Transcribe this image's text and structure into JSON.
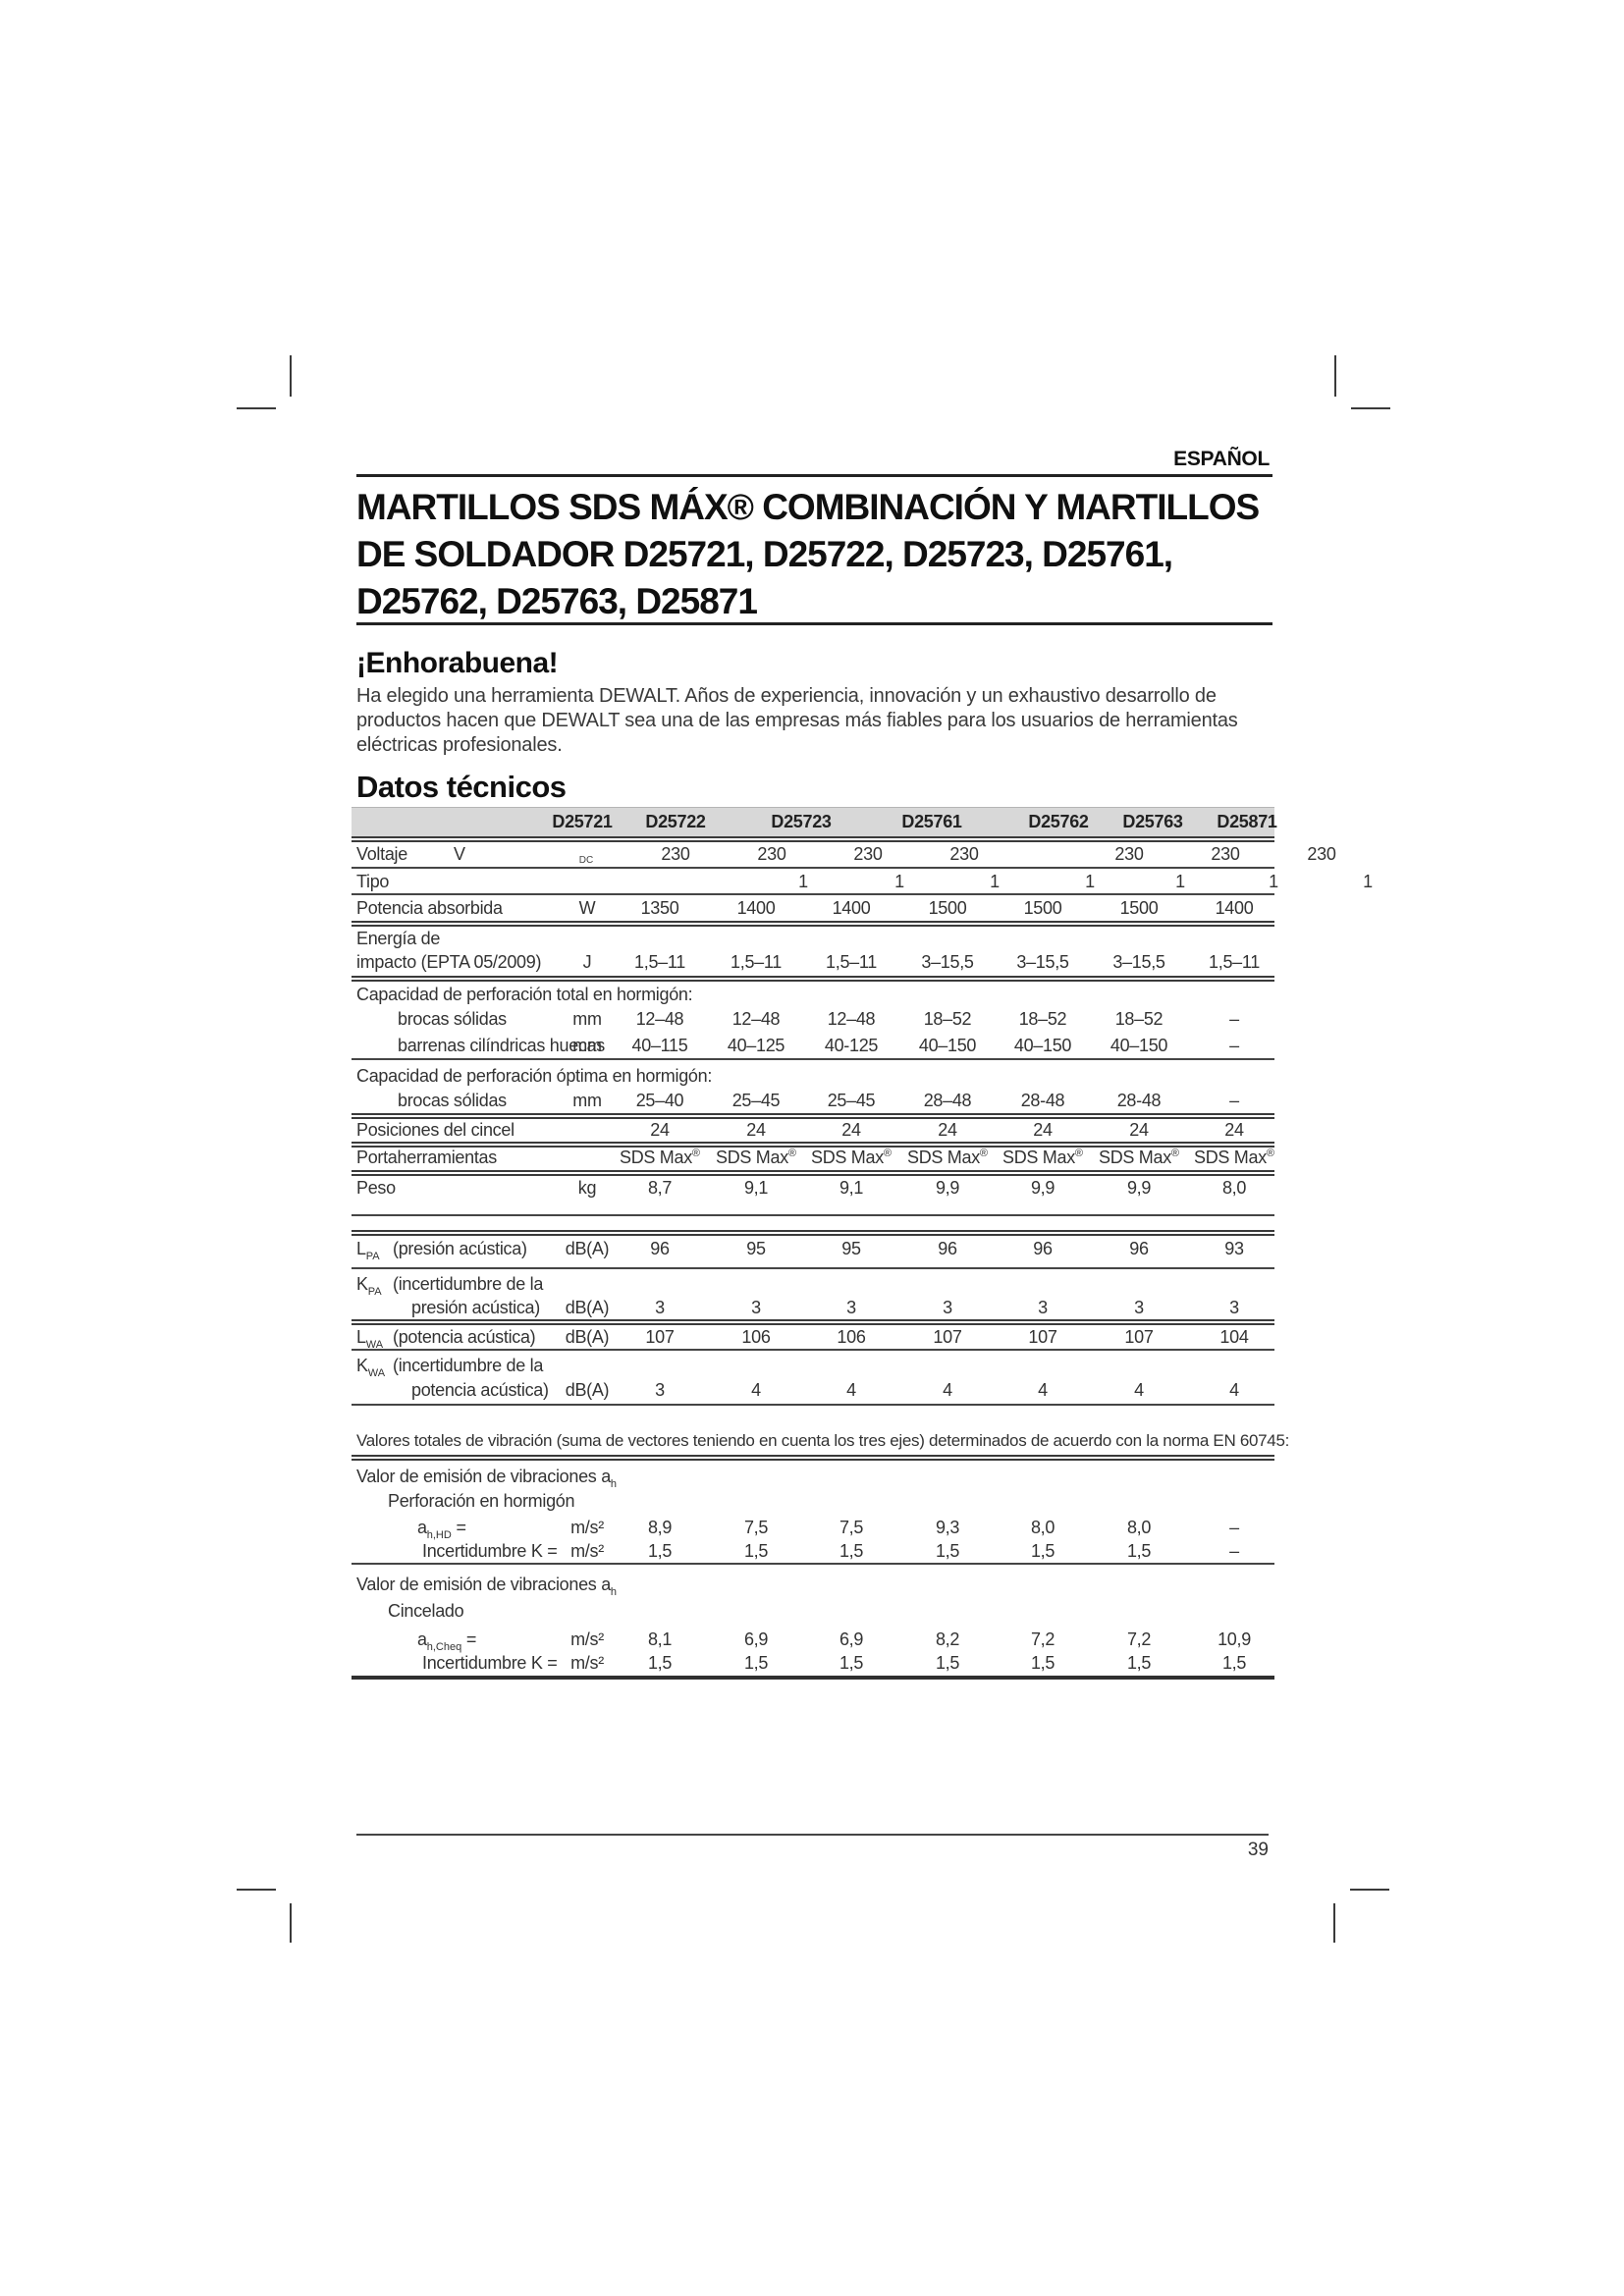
{
  "header": {
    "language": "ESPAÑOL"
  },
  "title": {
    "lines": [
      "MARTILLOS SDS MÁX® COMBINACIÓN Y MARTILLOS",
      "DE SOLDADOR D25721, D25722, D25723, D25761,",
      "D25762, D25763, D25871"
    ]
  },
  "intro": {
    "heading": "¡Enhorabuena!",
    "lines": [
      "Ha elegido una herramienta DEWALT. Años de experiencia, innovación y un exhaustivo desarrollo de",
      "productos hacen que DEWALT sea una de las empresas más fiables para los usuarios de herramientas",
      "eléctricas profesionales."
    ]
  },
  "table": {
    "heading": "Datos técnicos",
    "models": [
      "D25721",
      "D25722",
      "D25723",
      "D25761",
      "D25762",
      "D25763",
      "D25871"
    ],
    "rows": [
      {
        "id": "voltaje",
        "label": "Voltaje",
        "unit": "V",
        "unit_sub": "DC",
        "values": [
          "230",
          "230",
          "230",
          "230",
          "230",
          "230",
          "230"
        ]
      },
      {
        "id": "tipo",
        "label": "Tipo",
        "unit": "",
        "values": [
          "1",
          "1",
          "1",
          "1",
          "1",
          "1",
          "1"
        ]
      },
      {
        "id": "potencia",
        "label": "Potencia absorbida",
        "unit": "W",
        "values": [
          "1350",
          "1400",
          "1400",
          "1500",
          "1500",
          "1500",
          "1400"
        ]
      },
      {
        "id": "energia",
        "label": "Energía de",
        "label2": "impacto (EPTA 05/2009)",
        "unit": "J",
        "values": [
          "1,5–11",
          "1,5–11",
          "1,5–11",
          "3–15,5",
          "3–15,5",
          "3–15,5",
          "1,5–11"
        ]
      },
      {
        "id": "cap-total",
        "label": "Capacidad de perforación total en hormigón:",
        "section": true
      },
      {
        "id": "brocas1",
        "label": "brocas sólidas",
        "unit": "mm",
        "values": [
          "12–48",
          "12–48",
          "12–48",
          "18–52",
          "18–52",
          "18–52",
          "–"
        ]
      },
      {
        "id": "barrenas",
        "label": "barrenas cilíndricas huecas",
        "unit": "mm",
        "values": [
          "40–115",
          "40–125",
          "40-125",
          "40–150",
          "40–150",
          "40–150",
          "–"
        ]
      },
      {
        "id": "cap-optima",
        "label": "Capacidad de perforación óptima en hormigón:",
        "section": true
      },
      {
        "id": "brocas2",
        "label": "brocas sólidas",
        "unit": "mm",
        "values": [
          "25–40",
          "25–45",
          "25–45",
          "28–48",
          "28-48",
          "28-48",
          "–"
        ]
      },
      {
        "id": "posiciones",
        "label": "Posiciones del cincel",
        "unit": "",
        "values": [
          "24",
          "24",
          "24",
          "24",
          "24",
          "24",
          "24"
        ]
      },
      {
        "id": "portaherramientas",
        "label": "Portaherramientas",
        "unit": "",
        "values": [
          "SDS Max®",
          "SDS Max®",
          "SDS Max®",
          "SDS Max®",
          "SDS Max®",
          "SDS Max®",
          "SDS Max®"
        ]
      },
      {
        "id": "peso",
        "label": "Peso",
        "unit": "kg",
        "values": [
          "8,7",
          "9,1",
          "9,1",
          "9,9",
          "9,9",
          "9,9",
          "8,0"
        ]
      }
    ],
    "acoustic_rows": [
      {
        "id": "lpa",
        "sym": "L",
        "sym_sub": "PA",
        "desc": "(presión acústica)",
        "unit": "dB(A)",
        "values": [
          "96",
          "95",
          "95",
          "96",
          "96",
          "96",
          "93"
        ]
      },
      {
        "id": "kpa",
        "sym": "K",
        "sym_sub": "PA",
        "desc": "(incertidumbre de la",
        "desc2": "presión acústica)",
        "unit": "dB(A)",
        "values": [
          "3",
          "3",
          "3",
          "3",
          "3",
          "3",
          "3"
        ]
      },
      {
        "id": "lwa",
        "sym": "L",
        "sym_sub": "WA",
        "desc": "(potencia  acústica)",
        "unit": "dB(A)",
        "values": [
          "107",
          "106",
          "106",
          "107",
          "107",
          "107",
          "104"
        ]
      },
      {
        "id": "kwa",
        "sym": "K",
        "sym_sub": "WA",
        "desc": "(incertidumbre de la",
        "desc2": "potencia acústica)",
        "unit": "dB(A)",
        "values": [
          "3",
          "4",
          "4",
          "4",
          "4",
          "4",
          "4"
        ]
      }
    ]
  },
  "vibration": {
    "intro": "Valores totales de vibración (suma de vectores teniendo en cuenta los tres ejes) determinados de acuerdo con la norma EN 60745:",
    "groups": [
      {
        "title": "Valor de emisión de vibraciones a",
        "title_sub": "h",
        "subtitle": "Perforación en hormigón",
        "rows": [
          {
            "sym": "a",
            "sym_sub": "h,HD",
            "suffix": " =",
            "unit": "m/s²",
            "values": [
              "8,9",
              "7,5",
              "7,5",
              "9,3",
              "8,0",
              "8,0",
              "–"
            ]
          },
          {
            "label": "Incertidumbre K =",
            "unit": "m/s²",
            "values": [
              "1,5",
              "1,5",
              "1,5",
              "1,5",
              "1,5",
              "1,5",
              "–"
            ]
          }
        ]
      },
      {
        "title": "Valor de emisión de vibraciones a",
        "title_sub": "h",
        "subtitle": "Cincelado",
        "rows": [
          {
            "sym": "a",
            "sym_sub": "h,Cheq",
            "suffix": " =",
            "unit": "m/s²",
            "values": [
              "8,1",
              "6,9",
              "6,9",
              "8,2",
              "7,2",
              "7,2",
              "10,9"
            ]
          },
          {
            "label": "Incertidumbre K =",
            "unit": "m/s²",
            "values": [
              "1,5",
              "1,5",
              "1,5",
              "1,5",
              "1,5",
              "1,5",
              "1,5"
            ]
          }
        ]
      }
    ]
  },
  "footer": {
    "page_number": "39"
  }
}
